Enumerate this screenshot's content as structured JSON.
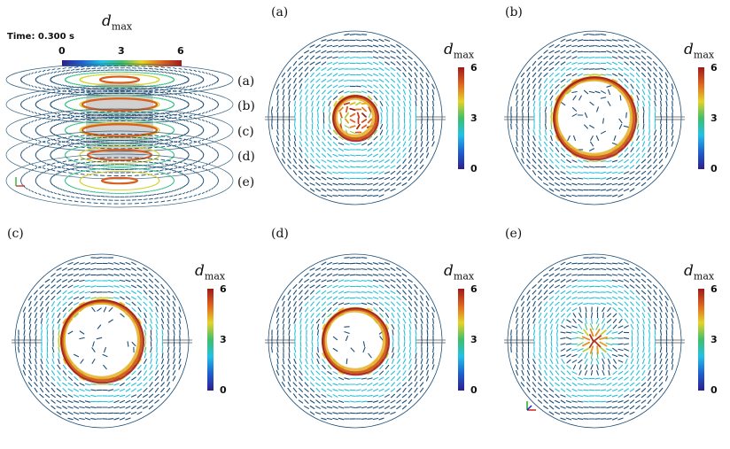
{
  "overview": {
    "time_label": "Time: 0.300 s",
    "colorbar_title": {
      "var": "d",
      "sub": "max"
    },
    "colorbar_ticks": [
      "0",
      "3",
      "6"
    ],
    "slice_labels": [
      "(a)",
      "(b)",
      "(c)",
      "(d)",
      "(e)"
    ]
  },
  "panels": [
    {
      "label": "(a)",
      "colorbar_ticks": [
        "6",
        "3",
        "0"
      ],
      "core": "vortex"
    },
    {
      "label": "(b)",
      "colorbar_ticks": [
        "6",
        "3",
        "0"
      ],
      "core": "ring-large"
    },
    {
      "label": "(c)",
      "colorbar_ticks": [
        "6",
        "3",
        "0"
      ],
      "core": "ring-large"
    },
    {
      "label": "(d)",
      "colorbar_ticks": [
        "6",
        "3",
        "0"
      ],
      "core": "ring-medium"
    },
    {
      "label": "(e)",
      "colorbar_ticks": [
        "6",
        "3",
        "0"
      ],
      "core": "burst"
    }
  ],
  "colors": {
    "colormap": [
      "#2d1e8c",
      "#1f5fd0",
      "#22c1e6",
      "#3fc06a",
      "#e6d32a",
      "#e0651f",
      "#9d1a1a"
    ],
    "arrow_outer": "#1d4f78",
    "arrow_mid": "#2a8fb8"
  },
  "chart_data": {
    "type": "other",
    "variable": "d_max",
    "colorbar_range": [
      0,
      6
    ],
    "time": "0.300 s"
  }
}
